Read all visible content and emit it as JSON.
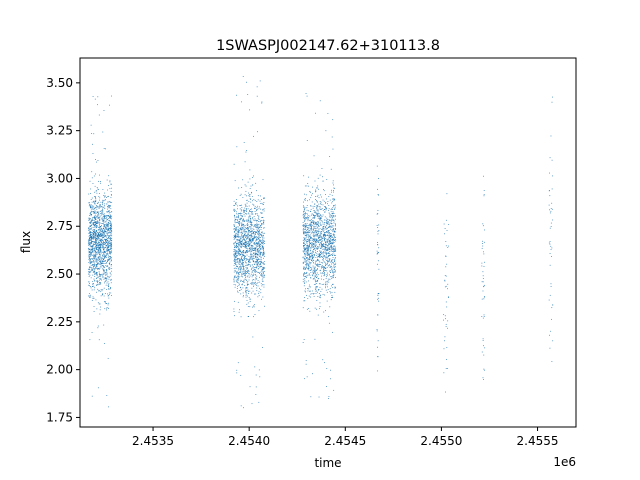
{
  "chart_data": {
    "type": "scatter",
    "title": "1SWASPJ002147.62+310113.8",
    "xlabel": "time",
    "ylabel": "flux",
    "x_offset_label": "1e6",
    "xlim": [
      2453120,
      2455700
    ],
    "ylim": [
      1.7,
      3.63
    ],
    "x_ticks": [
      {
        "value": 2453500,
        "label": "2.4535"
      },
      {
        "value": 2454000,
        "label": "2.4540"
      },
      {
        "value": 2454500,
        "label": "2.4545"
      },
      {
        "value": 2455000,
        "label": "2.4550"
      },
      {
        "value": 2455500,
        "label": "2.4555"
      }
    ],
    "y_ticks": [
      {
        "value": 1.75,
        "label": "1.75"
      },
      {
        "value": 2.0,
        "label": "2.00"
      },
      {
        "value": 2.25,
        "label": "2.25"
      },
      {
        "value": 2.5,
        "label": "2.50"
      },
      {
        "value": 2.75,
        "label": "2.75"
      },
      {
        "value": 3.0,
        "label": "3.00"
      },
      {
        "value": 3.25,
        "label": "3.25"
      },
      {
        "value": 3.5,
        "label": "3.50"
      }
    ],
    "marker_color": "#1f77b4",
    "grid": false,
    "legend": "none",
    "series": [
      {
        "clusters": [
          {
            "x_range": [
              2453165,
              2453285
            ],
            "y_mean": 2.66,
            "y_sd": 0.13,
            "y_range": [
              1.8,
              3.5
            ]
          },
          {
            "x_range": [
              2453920,
              2454080
            ],
            "y_mean": 2.64,
            "y_sd": 0.13,
            "y_range": [
              1.78,
              3.55
            ]
          },
          {
            "x_range": [
              2454280,
              2454450
            ],
            "y_mean": 2.66,
            "y_sd": 0.13,
            "y_range": [
              1.83,
              3.45
            ]
          },
          {
            "x_range": [
              2454665,
              2454675
            ],
            "y_mean": 2.6,
            "y_sd": 0.3,
            "y_range": [
              1.98,
              3.1
            ]
          },
          {
            "x_range": [
              2455010,
              2455040
            ],
            "y_mean": 2.4,
            "y_sd": 0.3,
            "y_range": [
              1.8,
              3.05
            ]
          },
          {
            "x_range": [
              2455210,
              2455225
            ],
            "y_mean": 2.45,
            "y_sd": 0.3,
            "y_range": [
              1.92,
              3.1
            ]
          },
          {
            "x_range": [
              2455560,
              2455580
            ],
            "y_mean": 2.6,
            "y_sd": 0.3,
            "y_range": [
              1.93,
              3.46
            ]
          }
        ]
      }
    ]
  }
}
